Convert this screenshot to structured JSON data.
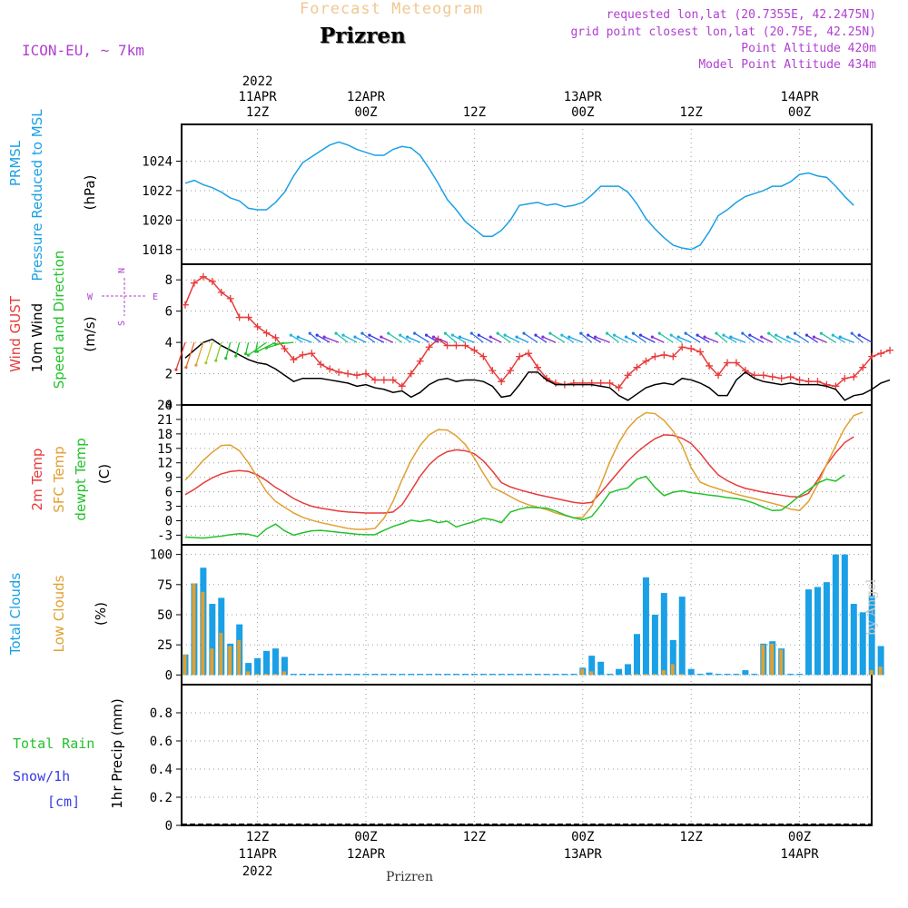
{
  "header": {
    "title": "Forecast Meteogram",
    "station": "Prizren",
    "model": "ICON-EU, ~ 7km",
    "requested": "requested lon,lat (20.7355E, 42.2475N)",
    "closest": "grid point closest lon,lat (20.75E, 42.25N)",
    "point_alt": "Point Altitude 420m",
    "model_alt": "Model Point Altitude 434m",
    "watermark": "by Angel",
    "footer_station": "Prizren"
  },
  "colors": {
    "pressure": "#1aa0e6",
    "gust": "#e83a3a",
    "wind": "#000000",
    "wind_dir": "#22c22a",
    "temp": "#e83a3a",
    "sfc": "#e0a030",
    "dew": "#22c22a",
    "total_clouds": "#1aa0e6",
    "low_clouds": "#e0a030",
    "rain": "#22c22a",
    "snow": "#3a3ae8",
    "purple": "#b040d0"
  },
  "chart_data": [
    {
      "type": "line",
      "title": "Pressure",
      "ylabel": "(hPa)",
      "side_labels": [
        "PRMSL",
        "Pressure Reduced to MSL"
      ],
      "ylim": [
        1017,
        1026.5
      ],
      "yticks": [
        1018,
        1020,
        1022,
        1024
      ],
      "series": [
        {
          "name": "PRMSL",
          "values": [
            1022.5,
            1022.7,
            1022.4,
            1022.2,
            1021.9,
            1021.5,
            1021.3,
            1020.8,
            1020.7,
            1020.7,
            1021.2,
            1021.9,
            1023.0,
            1023.9,
            1024.3,
            1024.7,
            1025.1,
            1025.3,
            1025.1,
            1024.8,
            1024.6,
            1024.4,
            1024.4,
            1024.8,
            1025.0,
            1024.9,
            1024.4,
            1023.5,
            1022.5,
            1021.4,
            1020.7,
            1019.9,
            1019.4,
            1018.9,
            1018.9,
            1019.3,
            1020.0,
            1021.0,
            1021.1,
            1021.2,
            1021.0,
            1021.1,
            1020.9,
            1021.0,
            1021.2,
            1021.7,
            1022.3,
            1022.3,
            1022.3,
            1021.9,
            1021.1,
            1020.1,
            1019.4,
            1018.8,
            1018.3,
            1018.1,
            1018.0,
            1018.3,
            1019.2,
            1020.3,
            1020.7,
            1021.2,
            1021.6,
            1021.8,
            1022.0,
            1022.3,
            1022.3,
            1022.6,
            1023.1,
            1023.2,
            1023.0,
            1022.9,
            1022.3,
            1021.6,
            1021.0
          ]
        }
      ]
    },
    {
      "type": "line",
      "title": "Wind",
      "ylabel": "(m/s)",
      "side_labels": [
        "Wind GUST",
        "10m Wind",
        "Speed and Direction"
      ],
      "compass": [
        "N",
        "W",
        "E",
        "S"
      ],
      "ylim": [
        0,
        9
      ],
      "yticks": [
        0,
        2,
        4,
        6,
        8
      ],
      "series": [
        {
          "name": "Wind GUST",
          "values": [
            6.4,
            7.8,
            8.2,
            7.9,
            7.2,
            6.8,
            5.6,
            5.6,
            5.0,
            4.6,
            4.3,
            3.6,
            2.9,
            3.2,
            3.3,
            2.6,
            2.3,
            2.1,
            2.0,
            1.9,
            2.0,
            1.6,
            1.6,
            1.6,
            1.2,
            2.0,
            2.8,
            3.7,
            4.2,
            3.8,
            3.8,
            3.8,
            3.5,
            3.1,
            2.2,
            1.5,
            2.2,
            3.1,
            3.3,
            2.4,
            1.7,
            1.4,
            1.3,
            1.4,
            1.4,
            1.4,
            1.4,
            1.4,
            1.1,
            1.9,
            2.4,
            2.8,
            3.1,
            3.2,
            3.1,
            3.7,
            3.6,
            3.4,
            2.5,
            1.9,
            2.7,
            2.7,
            2.2,
            1.9,
            1.9,
            1.8,
            1.7,
            1.8,
            1.6,
            1.5,
            1.5,
            1.3,
            1.2,
            1.7,
            1.8,
            2.4,
            3.1,
            3.3,
            3.5
          ]
        },
        {
          "name": "10m Wind",
          "values": [
            3.0,
            3.5,
            4.0,
            4.2,
            3.8,
            3.5,
            3.2,
            2.9,
            2.7,
            2.6,
            2.3,
            1.9,
            1.5,
            1.7,
            1.7,
            1.7,
            1.6,
            1.5,
            1.4,
            1.2,
            1.3,
            1.1,
            1.0,
            0.8,
            0.9,
            0.5,
            0.8,
            1.3,
            1.6,
            1.7,
            1.5,
            1.6,
            1.6,
            1.5,
            1.2,
            0.5,
            0.6,
            1.3,
            2.1,
            2.1,
            1.6,
            1.3,
            1.3,
            1.3,
            1.3,
            1.3,
            1.2,
            1.1,
            0.6,
            0.3,
            0.7,
            1.1,
            1.3,
            1.4,
            1.3,
            1.7,
            1.6,
            1.4,
            1.1,
            0.6,
            0.6,
            1.6,
            2.1,
            1.7,
            1.5,
            1.4,
            1.3,
            1.4,
            1.3,
            1.3,
            1.3,
            1.2,
            1.0,
            0.3,
            0.6,
            0.7,
            1.0,
            1.4,
            1.6
          ]
        }
      ]
    },
    {
      "type": "line",
      "title": "Temperature",
      "ylabel": "(C)",
      "side_labels": [
        "2m Temp",
        "SFC Temp",
        "dewpt Temp"
      ],
      "ylim": [
        -5,
        24
      ],
      "yticks": [
        -3,
        0,
        3,
        6,
        9,
        12,
        15,
        18,
        21,
        24
      ],
      "series": [
        {
          "name": "2m Temp",
          "values": [
            5.4,
            6.5,
            7.8,
            8.9,
            9.7,
            10.2,
            10.4,
            10.2,
            9.5,
            8.3,
            6.9,
            5.8,
            4.6,
            3.7,
            3.0,
            2.6,
            2.3,
            2.0,
            1.8,
            1.7,
            1.6,
            1.6,
            1.6,
            1.8,
            3.3,
            6.2,
            9.2,
            11.6,
            13.3,
            14.3,
            14.7,
            14.5,
            13.9,
            12.4,
            10.3,
            7.9,
            7.0,
            6.4,
            5.9,
            5.4,
            5.0,
            4.6,
            4.2,
            3.8,
            3.6,
            3.8,
            5.8,
            8.0,
            10.2,
            12.4,
            14.2,
            15.7,
            17.0,
            17.8,
            17.7,
            17.1,
            16.0,
            14.0,
            11.6,
            9.5,
            8.3,
            7.4,
            6.7,
            6.3,
            5.9,
            5.6,
            5.3,
            5.0,
            4.9,
            5.7,
            8.4,
            11.6,
            14.1,
            16.2,
            17.4
          ]
        },
        {
          "name": "SFC Temp",
          "values": [
            8.4,
            10.4,
            12.5,
            14.2,
            15.6,
            15.7,
            14.5,
            12.0,
            9.0,
            6.0,
            4.0,
            2.8,
            1.6,
            0.7,
            0.1,
            -0.4,
            -0.8,
            -1.2,
            -1.6,
            -1.8,
            -1.8,
            -1.6,
            0.5,
            4.0,
            8.5,
            12.5,
            15.6,
            17.8,
            18.9,
            18.8,
            17.6,
            15.8,
            13.0,
            9.8,
            6.9,
            6.0,
            5.0,
            4.0,
            3.3,
            2.8,
            2.3,
            1.6,
            1.1,
            0.6,
            0.7,
            3.0,
            7.5,
            12.2,
            16.2,
            19.2,
            21.2,
            22.4,
            22.2,
            20.8,
            18.6,
            15.6,
            11.0,
            8.0,
            7.2,
            6.6,
            6.0,
            5.5,
            5.0,
            4.6,
            4.1,
            3.6,
            3.1,
            2.4,
            2.1,
            4.0,
            7.5,
            11.7,
            15.5,
            19.2,
            21.8,
            22.5
          ]
        },
        {
          "name": "dewpt Temp",
          "values": [
            -3.4,
            -3.5,
            -3.6,
            -3.4,
            -3.2,
            -2.9,
            -2.7,
            -2.8,
            -3.3,
            -1.7,
            -0.7,
            -2.1,
            -3.0,
            -2.5,
            -2.1,
            -2.0,
            -2.2,
            -2.4,
            -2.6,
            -2.8,
            -2.9,
            -2.9,
            -2.0,
            -1.2,
            -0.6,
            0.1,
            -0.2,
            0.2,
            -0.4,
            -0.1,
            -1.3,
            -0.7,
            -0.2,
            0.5,
            0.2,
            -0.4,
            1.8,
            2.4,
            2.8,
            2.7,
            2.6,
            2.0,
            1.2,
            0.6,
            0.2,
            0.9,
            3.2,
            5.8,
            6.4,
            6.8,
            8.6,
            9.2,
            6.9,
            5.2,
            5.9,
            6.2,
            5.8,
            5.6,
            5.3,
            5.1,
            4.8,
            4.6,
            4.2,
            3.6,
            2.8,
            2.1,
            2.2,
            3.6,
            5.2,
            6.4,
            7.8,
            8.6,
            8.2,
            9.5
          ]
        }
      ]
    },
    {
      "type": "bar",
      "title": "Clouds",
      "ylabel": "(%)",
      "side_labels": [
        "Total Clouds",
        "Low Clouds"
      ],
      "ylim": [
        -8,
        108
      ],
      "yticks": [
        0,
        25,
        50,
        75,
        100
      ],
      "series": [
        {
          "name": "Total Clouds",
          "values": [
            17,
            76,
            89,
            59,
            64,
            26,
            42,
            10,
            14,
            20,
            22,
            15,
            1,
            1,
            1,
            1,
            1,
            1,
            1,
            1,
            1,
            1,
            1,
            1,
            1,
            1,
            1,
            1,
            1,
            1,
            1,
            1,
            1,
            1,
            1,
            1,
            1,
            1,
            1,
            1,
            1,
            1,
            1,
            1,
            6,
            16,
            11,
            1,
            5,
            9,
            34,
            81,
            50,
            68,
            29,
            65,
            5,
            1,
            2,
            1,
            1,
            1,
            4,
            1,
            26,
            28,
            22,
            1,
            1,
            71,
            73,
            77,
            100,
            100,
            59,
            52,
            66,
            24
          ]
        },
        {
          "name": "Low Clouds",
          "values": [
            17,
            76,
            69,
            22,
            35,
            24,
            29,
            3,
            1,
            1,
            1,
            3,
            0,
            0,
            0,
            0,
            0,
            0,
            0,
            0,
            0,
            0,
            0,
            0,
            0,
            0,
            0,
            0,
            0,
            0,
            0,
            0,
            0,
            0,
            0,
            0,
            0,
            0,
            0,
            0,
            0,
            0,
            0,
            0,
            5,
            3,
            0,
            0,
            0,
            0,
            1,
            1,
            1,
            4,
            9,
            1,
            0,
            0,
            0,
            0,
            0,
            0,
            0,
            0,
            25,
            26,
            21,
            0,
            0,
            0,
            0,
            0,
            0,
            0,
            0,
            0,
            4,
            7
          ]
        }
      ]
    },
    {
      "type": "bar",
      "title": "Precipitation",
      "ylabel": "1hr Precip (mm)",
      "side_labels": [
        "Total  Rain",
        "Snow/1h",
        "[cm]"
      ],
      "ylim": [
        0,
        1
      ],
      "yticks": [
        0,
        0.2,
        0.4,
        0.6,
        0.8
      ],
      "ytick_labels": [
        "0",
        "0.2",
        "0.4",
        "0.6",
        "0.8"
      ],
      "series": [
        {
          "name": "Total Rain",
          "values": []
        }
      ]
    }
  ],
  "time_axis": {
    "minor_top": [
      {
        "lines": [
          "2022",
          "11APR",
          "12Z"
        ],
        "hour": 12
      },
      {
        "lines": [
          "12APR",
          "00Z"
        ],
        "hour": 24
      },
      {
        "lines": [
          "12Z"
        ],
        "hour": 36
      },
      {
        "lines": [
          "13APR",
          "00Z"
        ],
        "hour": 48
      },
      {
        "lines": [
          "12Z"
        ],
        "hour": 60
      },
      {
        "lines": [
          "14APR",
          "00Z"
        ],
        "hour": 72
      }
    ],
    "bottom": [
      {
        "lines": [
          "12Z",
          "11APR",
          "2022"
        ],
        "hour": 12
      },
      {
        "lines": [
          "00Z",
          "12APR"
        ],
        "hour": 24
      },
      {
        "lines": [
          "12Z"
        ],
        "hour": 36
      },
      {
        "lines": [
          "00Z",
          "13APR"
        ],
        "hour": 48
      },
      {
        "lines": [
          "12Z"
        ],
        "hour": 60
      },
      {
        "lines": [
          "00Z",
          "14APR"
        ],
        "hour": 72
      }
    ]
  }
}
